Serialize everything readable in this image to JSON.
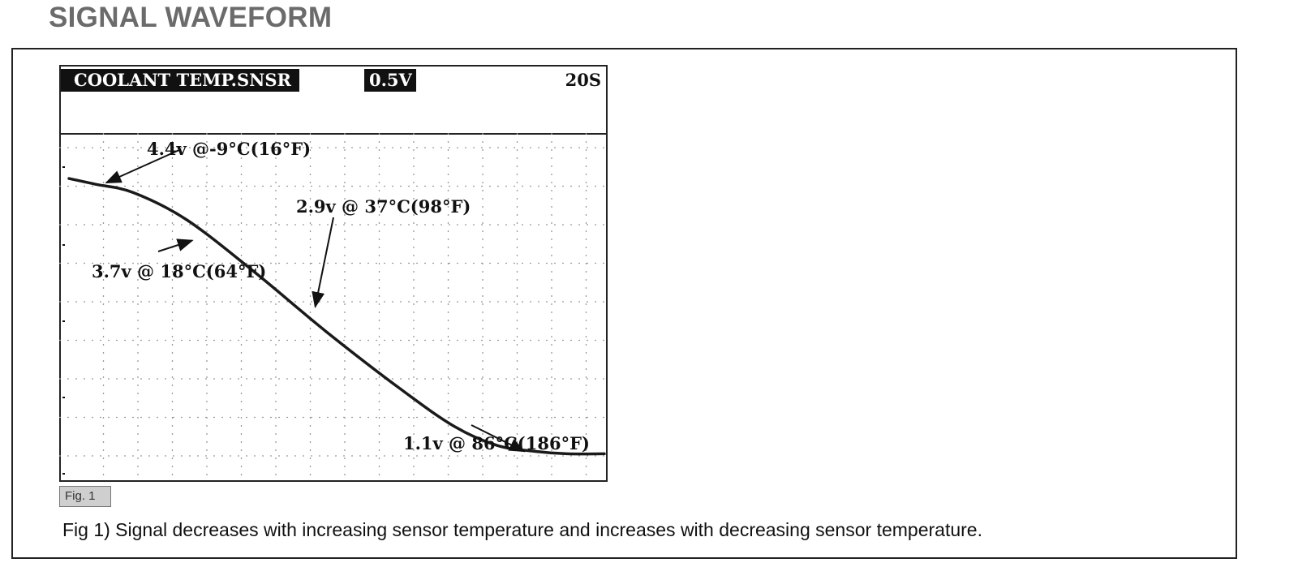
{
  "page_title": "SIGNAL WAVEFORM",
  "scope": {
    "sensor_label": "COOLANT TEMP.SNSR",
    "volts_per_div": "0.5V",
    "time_per_div": "20S"
  },
  "figure": {
    "tag": "Fig. 1",
    "caption": "Fig 1) Signal decreases with increasing sensor temperature and increases with decreasing sensor temperature."
  },
  "chart_data": {
    "type": "line",
    "title": "",
    "xlabel": "",
    "ylabel": "",
    "grid": true,
    "ylim": [
      0.8,
      5.0
    ],
    "xlim": [
      0,
      100
    ],
    "series": [
      {
        "values_x": [
          0,
          5,
          12,
          22,
          35,
          48,
          62,
          72,
          80,
          87,
          93,
          100
        ],
        "values_y": [
          4.45,
          4.38,
          4.28,
          3.95,
          3.3,
          2.6,
          1.9,
          1.45,
          1.22,
          1.15,
          1.12,
          1.12
        ]
      }
    ],
    "annotations": [
      {
        "text": "4.4v @-9°C(16°F)",
        "x": 7,
        "y": 4.4
      },
      {
        "text": "3.7v @ 18°C(64°F)",
        "x": 23,
        "y": 3.7
      },
      {
        "text": "2.9v @ 37°C(98°F)",
        "x": 46,
        "y": 2.9
      },
      {
        "text": "1.1v @ 86°C(186°F)",
        "x": 85,
        "y": 1.15
      }
    ],
    "colors": {
      "trace": "#1a1a1a",
      "grid": "#9a9a9a"
    }
  }
}
